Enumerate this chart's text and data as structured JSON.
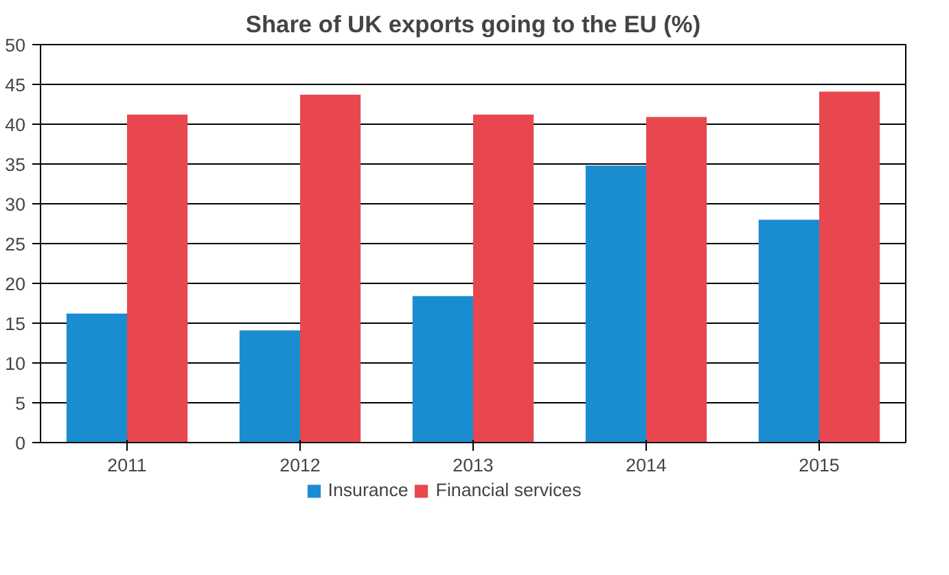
{
  "chart_data": {
    "type": "bar",
    "title": "Share of UK exports going to the EU (%)",
    "categories": [
      "2011",
      "2012",
      "2013",
      "2014",
      "2015"
    ],
    "series": [
      {
        "name": "Insurance",
        "color": "#1a8dd0",
        "values": [
          16.2,
          14.1,
          18.4,
          34.8,
          28.0
        ]
      },
      {
        "name": "Financial services",
        "color": "#e8474f",
        "values": [
          41.2,
          43.7,
          41.2,
          40.9,
          44.1
        ]
      }
    ],
    "ylim": [
      0,
      50
    ],
    "yticks": [
      0,
      5,
      10,
      15,
      20,
      25,
      30,
      35,
      40,
      45,
      50
    ],
    "grid": "y",
    "legend": "bottom"
  }
}
